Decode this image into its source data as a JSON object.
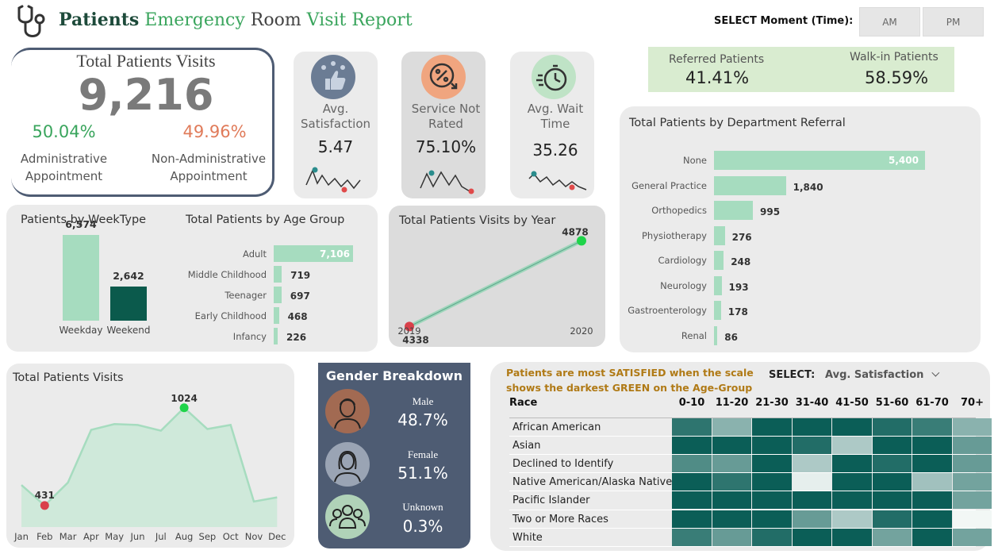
{
  "header": {
    "title_parts": [
      "Patients",
      " Emergency",
      " Room",
      " Visit",
      " Report"
    ],
    "select_label": "SELECT Moment (Time):",
    "time_options": [
      "AM",
      "PM"
    ]
  },
  "total_visits": {
    "title": "Total Patients Visits",
    "value": "9,216",
    "admin_pct": "50.04%",
    "admin_label_1": "Administrative",
    "admin_label_2": "Appointment",
    "nonadmin_pct": "49.96%",
    "nonadmin_label_1": "Non-Administrative",
    "nonadmin_label_2": "Appointment"
  },
  "kpis": [
    {
      "label_1": "Avg.",
      "label_2": "Satisfaction",
      "value": "5.47",
      "icon": "thumbs-up-stars-icon"
    },
    {
      "label_1": "Service Not",
      "label_2": "Rated",
      "value": "75.10%",
      "icon": "percent-badge-icon"
    },
    {
      "label_1": "Avg. Wait",
      "label_2": "Time",
      "value": "35.26",
      "icon": "stopwatch-icon"
    }
  ],
  "referral": {
    "referred_label": "Referred Patients",
    "referred_value": "41.41%",
    "walkin_label": "Walk-in Patients",
    "walkin_value": "58.59%"
  },
  "weektype": {
    "title": "Patients by WeekType",
    "chart_data": {
      "type": "bar",
      "categories": [
        "Weekday",
        "Weekend"
      ],
      "values": [
        6574,
        2642
      ],
      "value_labels": [
        "6,574",
        "2,642"
      ]
    }
  },
  "age_group": {
    "title": "Total Patients by Age Group",
    "chart_data": {
      "type": "bar",
      "orientation": "horizontal",
      "categories": [
        "Adult",
        "Middle Childhood",
        "Teenager",
        "Early Childhood",
        "Infancy"
      ],
      "values": [
        7106,
        719,
        697,
        468,
        226
      ],
      "value_labels": [
        "7,106",
        "719",
        "697",
        "468",
        "226"
      ]
    }
  },
  "by_year": {
    "title": "Total Patients Visits by Year",
    "chart_data": {
      "type": "line",
      "x": [
        "2019",
        "2020"
      ],
      "values": [
        4338,
        4878
      ],
      "value_labels": [
        "4338",
        "4878"
      ]
    }
  },
  "department": {
    "title": "Total Patients by Department Referral",
    "chart_data": {
      "type": "bar",
      "orientation": "horizontal",
      "categories": [
        "None",
        "General Practice",
        "Orthopedics",
        "Physiotherapy",
        "Cardiology",
        "Neurology",
        "Gastroenterology",
        "Renal"
      ],
      "values": [
        5400,
        1840,
        995,
        276,
        248,
        193,
        178,
        86
      ],
      "value_labels": [
        "5,400",
        "1,840",
        "995",
        "276",
        "248",
        "193",
        "178",
        "86"
      ]
    }
  },
  "monthly": {
    "title": "Total Patients Visits",
    "chart_data": {
      "type": "area",
      "x": [
        "Jan",
        "Feb",
        "Mar",
        "Apr",
        "May",
        "Jun",
        "Jul",
        "Aug",
        "Sep",
        "Oct",
        "Nov",
        "Dec"
      ],
      "values": [
        555,
        431,
        570,
        890,
        925,
        920,
        885,
        1024,
        895,
        920,
        455,
        480
      ],
      "min_label": "431",
      "max_label": "1024",
      "ylim": [
        300,
        1100
      ]
    }
  },
  "gender": {
    "title": "Gender Breakdown",
    "items": [
      {
        "label": "Male",
        "value": "48.7%",
        "icon": "male-avatar-icon"
      },
      {
        "label": "Female",
        "value": "51.1%",
        "icon": "female-avatar-icon"
      },
      {
        "label": "Unknown",
        "value": "0.3%",
        "icon": "group-icon"
      }
    ]
  },
  "heatmap": {
    "note_1": "Patients are most SATISFIED when the scale",
    "note_2": "shows the darkest GREEN on the Age-Group",
    "select_label": "SELECT:",
    "select_value": "Avg. Satisfaction",
    "race_header": "Race",
    "chart_data": {
      "type": "heatmap",
      "columns": [
        "0-10",
        "11-20",
        "21-30",
        "31-40",
        "41-50",
        "51-60",
        "61-70",
        "70+"
      ],
      "rows": [
        "African American",
        "Asian",
        "Declined to Identify",
        "Native American/Alaska Native",
        "Pacific Islander",
        "Two or More Races",
        "White"
      ],
      "values": [
        [
          0.85,
          0.45,
          1.0,
          1.0,
          1.0,
          0.9,
          0.8,
          0.45
        ],
        [
          1.0,
          1.0,
          1.0,
          0.9,
          0.3,
          1.0,
          1.0,
          0.6
        ],
        [
          0.7,
          0.6,
          1.0,
          0.3,
          1.0,
          0.9,
          1.0,
          0.6
        ],
        [
          1.0,
          0.85,
          1.0,
          0.05,
          1.0,
          1.0,
          0.35,
          0.55
        ],
        [
          1.0,
          1.0,
          1.0,
          1.0,
          1.0,
          1.0,
          1.0,
          0.55
        ],
        [
          1.0,
          1.0,
          1.0,
          0.6,
          0.3,
          0.9,
          1.0,
          0.0
        ],
        [
          0.8,
          0.6,
          0.9,
          1.0,
          1.0,
          0.55,
          1.0,
          0.55
        ]
      ]
    }
  },
  "colors": {
    "accent_green": "#3aa55d",
    "accent_orange": "#e07b5a",
    "bar_light": "#a6dcbf",
    "bar_dark": "#0b5a4c",
    "heat_dark": "#0b5e57",
    "heat_light": "#f2f7f5",
    "navy": "#4e5c73"
  }
}
